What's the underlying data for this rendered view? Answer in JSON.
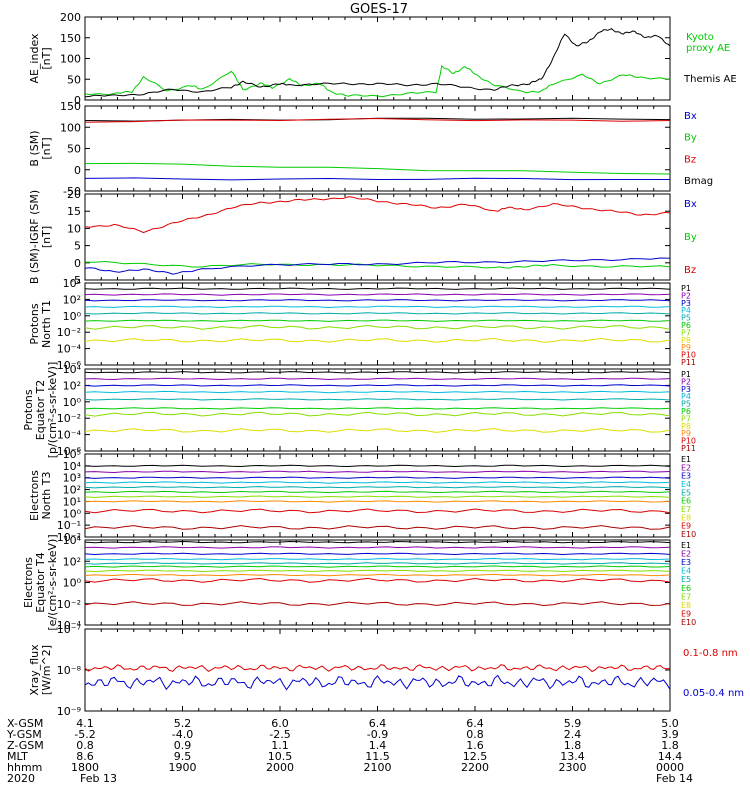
{
  "title": "GOES-17",
  "colors": {
    "black": "#000000",
    "red": "#dd0000",
    "green": "#00cc00",
    "blue": "#0000cc",
    "purple": "#8800aa",
    "cyan": "#00bbdd",
    "teal": "#00aaaa",
    "lime": "#88dd00",
    "yellow": "#dddd00",
    "orange": "#ff8800",
    "darkred": "#aa0000"
  },
  "chart_data": [
    {
      "type": "line",
      "ylabel": [
        "AE_index",
        "[nT]"
      ],
      "ylim": [
        0,
        200
      ],
      "yticks": [
        "200",
        "150",
        "100",
        "50",
        "0"
      ],
      "legend": [
        {
          "text": "Kyoto",
          "color": "#00cc00"
        },
        {
          "text": "proxy AE",
          "color": "#00cc00"
        },
        {
          "text": "Themis AE",
          "color": "#000000"
        }
      ],
      "series": [
        {
          "name": "Kyoto proxy AE",
          "color": "#00cc00",
          "x": [
            0,
            0.05,
            0.08,
            0.1,
            0.14,
            0.18,
            0.2,
            0.25,
            0.27,
            0.3,
            0.32,
            0.35,
            0.37,
            0.4,
            0.42,
            0.45,
            0.5,
            0.55,
            0.6,
            0.61,
            0.63,
            0.65,
            0.67,
            0.7,
            0.75,
            0.78,
            0.8,
            0.85,
            0.88,
            0.92,
            0.95,
            1.0
          ],
          "y": [
            15,
            15,
            20,
            55,
            22,
            35,
            25,
            70,
            25,
            40,
            30,
            50,
            35,
            40,
            20,
            10,
            10,
            15,
            20,
            80,
            65,
            80,
            60,
            35,
            20,
            20,
            40,
            60,
            40,
            60,
            55,
            50
          ]
        },
        {
          "name": "Themis AE",
          "color": "#000000",
          "x": [
            0,
            0.05,
            0.1,
            0.15,
            0.2,
            0.25,
            0.27,
            0.3,
            0.33,
            0.35,
            0.4,
            0.45,
            0.5,
            0.55,
            0.6,
            0.65,
            0.7,
            0.73,
            0.76,
            0.78,
            0.8,
            0.82,
            0.84,
            0.86,
            0.88,
            0.9,
            0.92,
            0.94,
            0.96,
            0.98,
            1.0
          ],
          "y": [
            10,
            10,
            15,
            25,
            20,
            30,
            45,
            30,
            40,
            35,
            40,
            38,
            40,
            35,
            40,
            30,
            25,
            35,
            40,
            50,
            100,
            160,
            130,
            140,
            165,
            170,
            160,
            165,
            150,
            155,
            130
          ]
        }
      ]
    },
    {
      "type": "line",
      "ylabel": [
        "B (SM)",
        "[nT]"
      ],
      "ylim": [
        -50,
        150
      ],
      "yticks": [
        "150",
        "100",
        "50",
        "0",
        "-50"
      ],
      "legend": [
        {
          "text": "Bx",
          "color": "#0000cc"
        },
        {
          "text": "By",
          "color": "#00cc00"
        },
        {
          "text": "Bz",
          "color": "#dd0000"
        },
        {
          "text": "Bmag",
          "color": "#000000"
        }
      ],
      "series": [
        {
          "name": "Bmag",
          "color": "#000000",
          "x": [
            0,
            0.5,
            1.0
          ],
          "y": [
            116,
            120,
            118
          ]
        },
        {
          "name": "Bz",
          "color": "#dd0000",
          "x": [
            0,
            0.5,
            1.0
          ],
          "y": [
            114,
            118,
            116
          ]
        },
        {
          "name": "By",
          "color": "#00cc00",
          "x": [
            0,
            0.5,
            1.0
          ],
          "y": [
            15,
            3,
            -10
          ]
        },
        {
          "name": "Bx",
          "color": "#0000cc",
          "x": [
            0,
            0.5,
            1.0
          ],
          "y": [
            -20,
            -22,
            -23
          ]
        }
      ]
    },
    {
      "type": "line",
      "ylabel": [
        "B (SM)-IGRF (SM)",
        "[nT]"
      ],
      "ylim": [
        -5,
        20
      ],
      "yticks": [
        "20",
        "15",
        "10",
        "5",
        "0",
        "-5"
      ],
      "legend": [
        {
          "text": "Bx",
          "color": "#0000cc"
        },
        {
          "text": "By",
          "color": "#00cc00"
        },
        {
          "text": "Bz",
          "color": "#dd0000"
        }
      ],
      "series": [
        {
          "name": "Bz",
          "color": "#dd0000",
          "x": [
            0,
            0.05,
            0.1,
            0.15,
            0.2,
            0.25,
            0.3,
            0.35,
            0.4,
            0.45,
            0.5,
            0.55,
            0.6,
            0.65,
            0.7,
            0.72,
            0.75,
            0.8,
            0.85,
            0.9,
            0.95,
            1.0
          ],
          "y": [
            10.5,
            11,
            9,
            11.5,
            13.5,
            16,
            17.5,
            18,
            18.5,
            19,
            18,
            17,
            16,
            17,
            15,
            16,
            15.5,
            17,
            16,
            15,
            14,
            14.5
          ]
        },
        {
          "name": "By",
          "color": "#00cc00",
          "x": [
            0,
            0.1,
            0.2,
            0.3,
            0.4,
            0.5,
            0.6,
            0.7,
            0.75,
            0.8,
            0.9,
            1.0
          ],
          "y": [
            0.5,
            -0.5,
            -1,
            -0.5,
            -0.5,
            -0.8,
            -1,
            -1.5,
            -1,
            -0.8,
            -1,
            -1.2
          ]
        },
        {
          "name": "Bx",
          "color": "#0000cc",
          "x": [
            0,
            0.05,
            0.1,
            0.15,
            0.2,
            0.3,
            0.4,
            0.5,
            0.6,
            0.7,
            0.8,
            0.9,
            1.0
          ],
          "y": [
            -1.5,
            -2.5,
            -2,
            -3,
            -2,
            -0.5,
            -0.5,
            -0.3,
            0,
            0.3,
            0.5,
            1,
            1.3
          ]
        }
      ]
    },
    {
      "type": "line",
      "yscale": "log",
      "ylabel": [
        "Protons",
        "North T1"
      ],
      "yticks": [
        "10⁴",
        "10²",
        "10⁰",
        "10⁻²",
        "10⁻⁴",
        "10⁻⁶"
      ],
      "ylim_exp": [
        -6,
        4
      ],
      "legend": [
        {
          "text": "P1",
          "color": "#000000"
        },
        {
          "text": "P2",
          "color": "#8800aa"
        },
        {
          "text": "P3",
          "color": "#0000cc"
        },
        {
          "text": "P4",
          "color": "#00bbdd"
        },
        {
          "text": "P5",
          "color": "#00aaaa"
        },
        {
          "text": "P6",
          "color": "#00cc00"
        },
        {
          "text": "P7",
          "color": "#88dd00"
        },
        {
          "text": "P8",
          "color": "#dddd00"
        },
        {
          "text": "P9",
          "color": "#ff8800"
        },
        {
          "text": "P10",
          "color": "#dd0000"
        },
        {
          "text": "P11",
          "color": "#aa0000"
        }
      ],
      "series": [
        {
          "name": "P1",
          "color": "#000000",
          "y_exp": 3.3
        },
        {
          "name": "P2",
          "color": "#8800aa",
          "y_exp": 2.6
        },
        {
          "name": "P3",
          "color": "#0000cc",
          "y_exp": 1.9
        },
        {
          "name": "P4",
          "color": "#00bbdd",
          "y_exp": 1.1
        },
        {
          "name": "P5",
          "color": "#00aaaa",
          "y_exp": 0.3
        },
        {
          "name": "P6",
          "color": "#00cc00",
          "y_exp": -0.6
        },
        {
          "name": "P7",
          "color": "#88dd00",
          "y_exp": -1.4
        },
        {
          "name": "P8",
          "color": "#dddd00",
          "y_exp": -3.0
        }
      ]
    },
    {
      "type": "line",
      "yscale": "log",
      "ylabel": [
        "Protons",
        "Equator T2",
        "[p/(cm²-s-sr-keV)]"
      ],
      "yticks": [
        "10⁴",
        "10²",
        "10⁰",
        "10⁻²",
        "10⁻⁴",
        "10⁻⁶"
      ],
      "ylim_exp": [
        -6,
        4
      ],
      "legend": [
        {
          "text": "P1",
          "color": "#000000"
        },
        {
          "text": "P2",
          "color": "#8800aa"
        },
        {
          "text": "P3",
          "color": "#0000cc"
        },
        {
          "text": "P4",
          "color": "#00bbdd"
        },
        {
          "text": "P5",
          "color": "#00aaaa"
        },
        {
          "text": "P6",
          "color": "#00cc00"
        },
        {
          "text": "P7",
          "color": "#88dd00"
        },
        {
          "text": "P8",
          "color": "#dddd00"
        },
        {
          "text": "P9",
          "color": "#ff8800"
        },
        {
          "text": "P10",
          "color": "#dd0000"
        },
        {
          "text": "P11",
          "color": "#aa0000"
        }
      ],
      "series": [
        {
          "name": "P1",
          "color": "#000000",
          "y_exp": 3.6
        },
        {
          "name": "P2",
          "color": "#8800aa",
          "y_exp": 2.8
        },
        {
          "name": "P3",
          "color": "#0000cc",
          "y_exp": 2.0
        },
        {
          "name": "P4",
          "color": "#00bbdd",
          "y_exp": 1.2
        },
        {
          "name": "P5",
          "color": "#00aaaa",
          "y_exp": 0.3
        },
        {
          "name": "P6",
          "color": "#00cc00",
          "y_exp": -0.8
        },
        {
          "name": "P7",
          "color": "#88dd00",
          "y_exp": -1.5
        },
        {
          "name": "P8",
          "color": "#dddd00",
          "y_exp": -3.5
        }
      ]
    },
    {
      "type": "line",
      "yscale": "log",
      "ylabel": [
        "Electrons",
        "North T3"
      ],
      "yticks": [
        "10⁵",
        "10⁴",
        "10³",
        "10²",
        "10¹",
        "10⁰",
        "10⁻¹",
        "10⁻²"
      ],
      "ylim_exp": [
        -2,
        5
      ],
      "legend": [
        {
          "text": "E1",
          "color": "#000000"
        },
        {
          "text": "E2",
          "color": "#8800aa"
        },
        {
          "text": "E3",
          "color": "#0000cc"
        },
        {
          "text": "E4",
          "color": "#00bbdd"
        },
        {
          "text": "E5",
          "color": "#00aaaa"
        },
        {
          "text": "E6",
          "color": "#00cc00"
        },
        {
          "text": "E7",
          "color": "#88dd00"
        },
        {
          "text": "E8",
          "color": "#dddd00"
        },
        {
          "text": "E9",
          "color": "#dd0000"
        },
        {
          "text": "E10",
          "color": "#aa0000"
        }
      ],
      "series": [
        {
          "name": "E1",
          "color": "#000000",
          "y_exp": 4.0
        },
        {
          "name": "E2",
          "color": "#8800aa",
          "y_exp": 3.5
        },
        {
          "name": "E3",
          "color": "#0000cc",
          "y_exp": 3.0
        },
        {
          "name": "E4",
          "color": "#00bbdd",
          "y_exp": 2.6
        },
        {
          "name": "E5",
          "color": "#00aaaa",
          "y_exp": 2.2
        },
        {
          "name": "E6",
          "color": "#00cc00",
          "y_exp": 1.8
        },
        {
          "name": "E7",
          "color": "#88dd00",
          "y_exp": 1.4
        },
        {
          "name": "E8",
          "color": "#ff8800",
          "y_exp": 1.0
        },
        {
          "name": "E9",
          "color": "#dd0000",
          "y_exp": 0.2
        },
        {
          "name": "E10",
          "color": "#aa0000",
          "y_exp": -1.2
        }
      ]
    },
    {
      "type": "line",
      "yscale": "log",
      "ylabel": [
        "Electrons",
        "Equator T4",
        "[e/(cm²-s-sr-keV)]"
      ],
      "yticks": [
        "10⁴",
        "10²",
        "10⁰",
        "10⁻²",
        "10⁻⁴"
      ],
      "ylim_exp": [
        -4,
        4
      ],
      "legend": [
        {
          "text": "E1",
          "color": "#000000"
        },
        {
          "text": "E2",
          "color": "#8800aa"
        },
        {
          "text": "E3",
          "color": "#0000cc"
        },
        {
          "text": "E4",
          "color": "#00bbdd"
        },
        {
          "text": "E5",
          "color": "#00aaaa"
        },
        {
          "text": "E6",
          "color": "#00cc00"
        },
        {
          "text": "E7",
          "color": "#88dd00"
        },
        {
          "text": "E8",
          "color": "#dddd00"
        },
        {
          "text": "E9",
          "color": "#dd0000"
        },
        {
          "text": "E10",
          "color": "#aa0000"
        }
      ],
      "series": [
        {
          "name": "E1",
          "color": "#000000",
          "y_exp": 3.8
        },
        {
          "name": "E2",
          "color": "#8800aa",
          "y_exp": 3.3
        },
        {
          "name": "E3",
          "color": "#0000cc",
          "y_exp": 2.7
        },
        {
          "name": "E4",
          "color": "#00bbdd",
          "y_exp": 2.2
        },
        {
          "name": "E5",
          "color": "#00aaaa",
          "y_exp": 1.8
        },
        {
          "name": "E6",
          "color": "#00cc00",
          "y_exp": 1.5
        },
        {
          "name": "E7",
          "color": "#88dd00",
          "y_exp": 1.1
        },
        {
          "name": "E8",
          "color": "#ff8800",
          "y_exp": 0.7
        },
        {
          "name": "E9",
          "color": "#dd0000",
          "y_exp": 0.2
        },
        {
          "name": "E10",
          "color": "#aa0000",
          "y_exp": -2.0
        }
      ]
    },
    {
      "type": "line",
      "yscale": "log",
      "ylabel": [
        "Xray_flux",
        "[W/m^2]"
      ],
      "yticks": [
        "10⁻⁷",
        "10⁻⁸",
        "10⁻⁹"
      ],
      "ylim_exp": [
        -9,
        -7
      ],
      "legend": [
        {
          "text": "0.1-0.8 nm",
          "color": "#dd0000"
        },
        {
          "text": "0.05-0.4 nm",
          "color": "#0000cc"
        }
      ],
      "series": [
        {
          "name": "0.1-0.8 nm",
          "color": "#dd0000",
          "y_exp": -7.95
        },
        {
          "name": "0.05-0.4 nm",
          "color": "#0000cc",
          "y_exp": -8.3
        }
      ]
    }
  ],
  "footer": {
    "rows": [
      {
        "label": "X-GSM",
        "values": [
          "4.1",
          "5.2",
          "6.0",
          "6.4",
          "6.4",
          "5.9",
          "5.0"
        ]
      },
      {
        "label": "Y-GSM",
        "values": [
          "-5.2",
          "-4.0",
          "-2.5",
          "-0.9",
          "0.8",
          "2.4",
          "3.9"
        ]
      },
      {
        "label": "Z-GSM",
        "values": [
          "0.8",
          "0.9",
          "1.1",
          "1.4",
          "1.6",
          "1.8",
          "1.8"
        ]
      },
      {
        "label": "MLT",
        "values": [
          "8.6",
          "9.5",
          "10.5",
          "11.5",
          "12.5",
          "13.4",
          "14.4"
        ]
      },
      {
        "label": "hhmm",
        "values": [
          "1800",
          "1900",
          "2000",
          "2100",
          "2200",
          "2300",
          "0000"
        ]
      }
    ],
    "year": "2020",
    "date_start": "Feb 13",
    "date_end": "Feb 14"
  }
}
